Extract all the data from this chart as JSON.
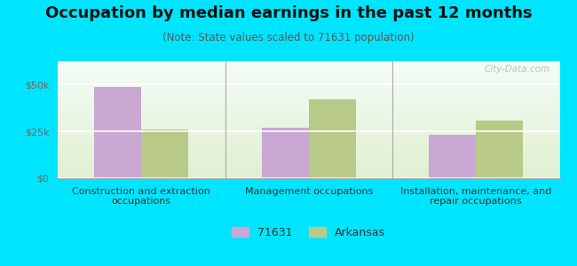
{
  "title": "Occupation by median earnings in the past 12 months",
  "subtitle": "(Note: State values scaled to 71631 population)",
  "categories": [
    "Construction and extraction\noccupations",
    "Management occupations",
    "Installation, maintenance, and\nrepair occupations"
  ],
  "values_71631": [
    49000,
    27000,
    23000
  ],
  "values_arkansas": [
    26000,
    42000,
    31000
  ],
  "bar_color_71631": "#c9a8d4",
  "bar_color_arkansas": "#b8c98a",
  "background_outer": "#00e5ff",
  "ylim": [
    0,
    62500
  ],
  "yticks": [
    0,
    25000,
    50000
  ],
  "ytick_labels": [
    "$0",
    "$25k",
    "$50k"
  ],
  "legend_label_1": "71631",
  "legend_label_2": "Arkansas",
  "watermark": "City-Data.com",
  "title_fontsize": 13,
  "subtitle_fontsize": 8.5,
  "tick_fontsize": 8,
  "bar_width": 0.28
}
